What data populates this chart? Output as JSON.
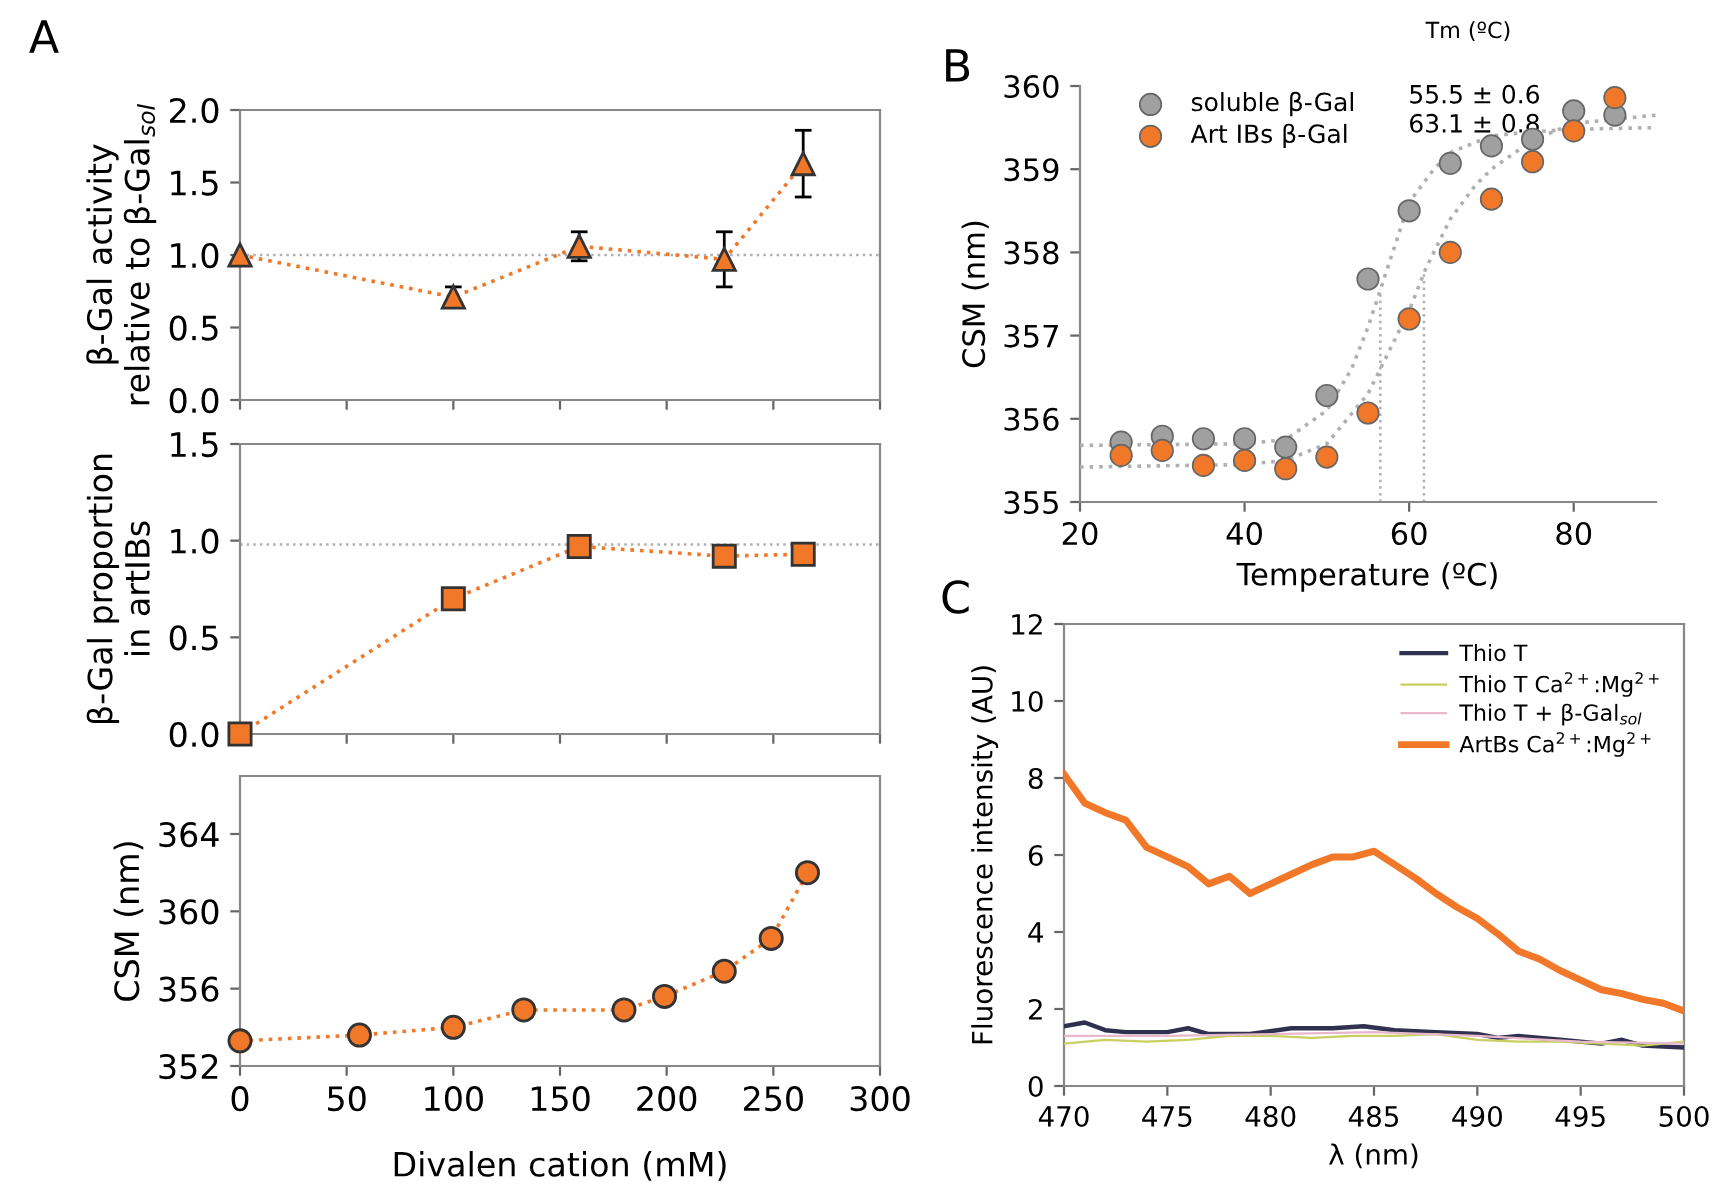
{
  "chart_data": [
    {
      "type": "line",
      "ylabel": "β-Gal activity\nrelative to β-Gal$_{sol}$",
      "annotations": [
        "A"
      ],
      "marker": "triangle",
      "line_style": "dotted",
      "tick_labels": "y",
      "grid": false,
      "xlim": [
        0,
        300
      ],
      "xticks": [
        {
          "value": 0,
          "label": null
        },
        {
          "value": 50,
          "label": null
        },
        {
          "value": 100,
          "label": null
        },
        {
          "value": 150,
          "label": null
        },
        {
          "value": 200,
          "label": null
        },
        {
          "value": 250,
          "label": null
        },
        {
          "value": 300,
          "label": null
        }
      ],
      "ylim": [
        0,
        2
      ],
      "yticks": [
        {
          "value": 0,
          "label": "0.0"
        },
        {
          "value": 0.5,
          "label": "0.5"
        },
        {
          "value": 1,
          "label": "1.0"
        },
        {
          "value": 1.5,
          "label": "1.5"
        },
        {
          "value": 2,
          "label": "2.0"
        }
      ],
      "ref_lines": [
        {
          "axis": "y",
          "value": 1,
          "color": "#b0b0b0",
          "line_style": "dotted"
        }
      ],
      "series": [
        {
          "color": "#f07828",
          "x": [
            0,
            100,
            159,
            227,
            264
          ],
          "values": [
            1.0,
            0.71,
            1.06,
            0.97,
            1.63
          ],
          "errors": [
            null,
            0.07,
            0.1,
            0.19,
            0.23
          ]
        }
      ]
    },
    {
      "type": "line",
      "ylabel": "β-Gal proportion\nin artIBs",
      "marker": "square",
      "line_style": "dotted",
      "tick_labels": "y",
      "grid": false,
      "xlim": [
        0,
        300
      ],
      "xticks": [
        {
          "value": 0,
          "label": null
        },
        {
          "value": 50,
          "label": null
        },
        {
          "value": 100,
          "label": null
        },
        {
          "value": 150,
          "label": null
        },
        {
          "value": 200,
          "label": null
        },
        {
          "value": 250,
          "label": null
        },
        {
          "value": 300,
          "label": null
        }
      ],
      "ylim": [
        0,
        1.5
      ],
      "yticks": [
        {
          "value": 0,
          "label": "0.0"
        },
        {
          "value": 0.5,
          "label": "0.5"
        },
        {
          "value": 1,
          "label": "1.0"
        },
        {
          "value": 1.5,
          "label": "1.5"
        }
      ],
      "ref_lines": [
        {
          "axis": "y",
          "value": 0.98,
          "color": "#b0b0b0",
          "line_style": "dotted"
        }
      ],
      "series": [
        {
          "color": "#f07828",
          "x": [
            0,
            100,
            159,
            227,
            264
          ],
          "values": [
            0.0,
            0.7,
            0.97,
            0.92,
            0.93
          ]
        }
      ]
    },
    {
      "type": "line",
      "ylabel": "CSM (nm)",
      "xlabel": "Divalen cation (mM)",
      "marker": "circle",
      "line_style": "dotted",
      "grid": false,
      "xlim": [
        0,
        300
      ],
      "xticks": [
        0,
        50,
        100,
        150,
        200,
        250,
        300
      ],
      "ylim": [
        352,
        367
      ],
      "yticks": [
        352,
        356,
        360,
        364
      ],
      "series": [
        {
          "color": "#f07828",
          "x": [
            0,
            56,
            100,
            133,
            180,
            199,
            227,
            249,
            266
          ],
          "values": [
            353.3,
            353.6,
            354.0,
            354.9,
            354.9,
            355.6,
            356.9,
            358.6,
            362.0
          ]
        }
      ]
    },
    {
      "type": "scatter",
      "xlabel": "Temperature (ºC)",
      "ylabel": "CSM (nm)",
      "annotations": [
        "B",
        "Tm (ºC)",
        "55.5 ± 0.6",
        "63.1 ± 0.8"
      ],
      "marker": "circle",
      "legend": "top left",
      "grid": false,
      "xlim": [
        20,
        90
      ],
      "xticks": [
        20,
        40,
        60,
        80
      ],
      "ylim": [
        355,
        360
      ],
      "yticks": [
        355,
        356,
        357,
        358,
        359,
        360
      ],
      "ref_lines": [
        {
          "axis": "x",
          "value": 56.5,
          "color": "#b0b0b0",
          "line_style": "dotted"
        },
        {
          "axis": "x",
          "value": 61.8,
          "color": "#b0b0b0",
          "line_style": "dotted"
        }
      ],
      "series": [
        {
          "name": "soluble β-Gal",
          "color": "#a0a0a0",
          "x": [
            25,
            30,
            35,
            40,
            45,
            50,
            55,
            60,
            65,
            70,
            75,
            80,
            85
          ],
          "values": [
            355.72,
            355.79,
            355.76,
            355.76,
            355.66,
            356.28,
            357.68,
            358.5,
            359.07,
            359.28,
            359.36,
            359.7,
            359.65
          ]
        },
        {
          "name": "Art IBs β-Gal",
          "color": "#f07828",
          "x": [
            25,
            30,
            35,
            40,
            45,
            50,
            55,
            60,
            65,
            70,
            75,
            80,
            85
          ],
          "values": [
            355.56,
            355.62,
            355.44,
            355.5,
            355.4,
            355.54,
            356.07,
            357.2,
            358.0,
            358.64,
            359.09,
            359.46,
            359.86
          ]
        },
        {
          "type": "line",
          "marker": "none",
          "line_style": "dotted",
          "color": "#b0b0b0",
          "x": [
            20,
            40,
            45,
            50,
            53,
            55,
            57,
            60,
            63,
            65,
            70,
            75,
            80,
            90
          ],
          "values": [
            355.68,
            355.7,
            355.75,
            356.1,
            356.6,
            357.1,
            357.7,
            358.6,
            359.0,
            359.2,
            359.4,
            359.45,
            359.48,
            359.5
          ]
        },
        {
          "type": "line",
          "marker": "none",
          "line_style": "dotted",
          "color": "#b0b0b0",
          "x": [
            20,
            40,
            45,
            50,
            55,
            58,
            60,
            62,
            65,
            68,
            70,
            75,
            80,
            90
          ],
          "values": [
            355.42,
            355.45,
            355.5,
            355.7,
            356.3,
            356.9,
            357.3,
            357.8,
            358.4,
            358.8,
            359.0,
            359.35,
            359.55,
            359.65
          ]
        }
      ]
    },
    {
      "type": "line",
      "xlabel": "λ (nm)",
      "ylabel": "Fluorescence intensity (AU)",
      "annotations": [
        "C"
      ],
      "legend": "top right",
      "line_style": "solid",
      "grid": false,
      "xlim": [
        470,
        500
      ],
      "xticks": [
        470,
        475,
        480,
        485,
        490,
        495,
        500
      ],
      "ylim": [
        0,
        12
      ],
      "yticks": [
        0,
        2,
        4,
        6,
        8,
        10,
        12
      ],
      "series": [
        {
          "name": "Thio T",
          "color": "#303050",
          "x": [
            470,
            471,
            472,
            473,
            475,
            476,
            477,
            479,
            481,
            483,
            484.5,
            486,
            488,
            490,
            491,
            492,
            494,
            496,
            497,
            498,
            500
          ],
          "values": [
            1.55,
            1.65,
            1.45,
            1.4,
            1.4,
            1.5,
            1.35,
            1.35,
            1.5,
            1.5,
            1.55,
            1.45,
            1.4,
            1.35,
            1.25,
            1.3,
            1.2,
            1.1,
            1.2,
            1.05,
            1.0
          ]
        },
        {
          "name": "Thio T Ca$^{2+}$:Mg$^{2+}$",
          "color": "#c8d060",
          "x": [
            470,
            472,
            474,
            476,
            478,
            480,
            482,
            484,
            486,
            488,
            490,
            492,
            494,
            496,
            498,
            500
          ],
          "values": [
            1.1,
            1.2,
            1.15,
            1.2,
            1.3,
            1.3,
            1.25,
            1.3,
            1.3,
            1.35,
            1.2,
            1.15,
            1.15,
            1.1,
            1.05,
            1.15
          ]
        },
        {
          "name": "Thio T + β-Gal$_{sol}$",
          "color": "#e8b8cc",
          "x": [
            470,
            475,
            480,
            485,
            490,
            495,
            500
          ],
          "values": [
            1.3,
            1.3,
            1.35,
            1.4,
            1.3,
            1.15,
            1.1
          ]
        },
        {
          "name": "ArtBs Ca$^{2+}$:Mg$^{2+}$",
          "color": "#f07828",
          "x": [
            470,
            471,
            472,
            473,
            474,
            475,
            476,
            477,
            478,
            479,
            480,
            481,
            482,
            483,
            484,
            485,
            486,
            487,
            488,
            489,
            490,
            491,
            492,
            493,
            494,
            495,
            496,
            497,
            498,
            499,
            500
          ],
          "values": [
            8.1,
            7.35,
            7.1,
            6.9,
            6.2,
            5.95,
            5.7,
            5.25,
            5.45,
            5.0,
            5.25,
            5.5,
            5.75,
            5.95,
            5.95,
            6.1,
            5.75,
            5.4,
            5.0,
            4.65,
            4.35,
            3.95,
            3.5,
            3.3,
            3.0,
            2.75,
            2.5,
            2.4,
            2.25,
            2.15,
            1.95
          ]
        }
      ]
    }
  ]
}
